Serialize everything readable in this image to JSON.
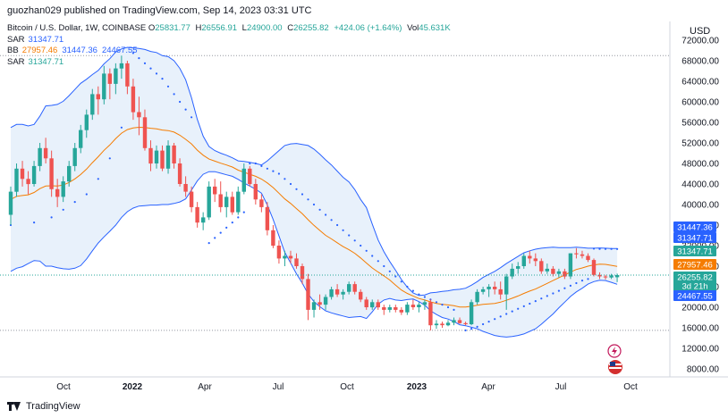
{
  "header": {
    "text": "guozhan029 published on TradingView.com, Sep 14, 2023 03:31 UTC"
  },
  "legend": {
    "symbol": "Bitcoin / U.S. Dollar, 1W, COINBASE",
    "o_label": "O",
    "o": "25831.77",
    "h_label": "H",
    "h": "26556.91",
    "l_label": "L",
    "l": "24900.00",
    "c_label": "C",
    "c": "26255.82",
    "change": "+424.06 (+1.64%)",
    "vol_label": "Vol",
    "vol": "45.631K",
    "sar1_label": "SAR",
    "sar1": "31347.71",
    "bb_label": "BB",
    "bb_mid": "27957.46",
    "bb_upper": "31447.36",
    "bb_lower": "24467.55",
    "sar2_label": "SAR",
    "sar2": "31347.71"
  },
  "footer": {
    "brand": "TradingView"
  },
  "colors": {
    "up": "#26a69a",
    "down": "#ef5350",
    "band_line": "#2962ff",
    "band_fill": "#e8f1fb",
    "basis": "#f57c00",
    "sar": "#2962ff",
    "price_tag": "#26a69a",
    "current_tag": "#2962ff"
  },
  "chart_data": {
    "type": "candlestick",
    "x_tick_labels": [
      "Oct",
      "2022",
      "Apr",
      "Jul",
      "Oct",
      "2023",
      "Apr",
      "Jul",
      "Oct"
    ],
    "y_axis_label": "USD",
    "y_tick_labels": [
      "8000.00",
      "12000.00",
      "16000.00",
      "20000.00",
      "24000.00",
      "28000.00",
      "32000.00",
      "36000.00",
      "40000.00",
      "44000.00",
      "48000.00",
      "52000.00",
      "56000.00",
      "60000.00",
      "64000.00",
      "68000.00",
      "72000.00"
    ],
    "ylim": [
      6000,
      74000
    ],
    "horizontal_markers": [
      69000,
      15500
    ],
    "price_tags": [
      {
        "label": "31447.36",
        "type": "band"
      },
      {
        "label": "31347.71",
        "type": "band"
      },
      {
        "label": "31347.71",
        "type": "sar"
      },
      {
        "label": "27957.46",
        "type": "basis"
      },
      {
        "label": "26255.82",
        "type": "current"
      },
      {
        "label": "3d 21h",
        "type": "current"
      },
      {
        "label": "24467.55",
        "type": "band"
      }
    ],
    "candles_ohlc": [
      [
        38000,
        43500,
        36000,
        42500
      ],
      [
        42500,
        48000,
        41500,
        47000
      ],
      [
        47000,
        48500,
        43500,
        45000
      ],
      [
        45000,
        46500,
        42000,
        44000
      ],
      [
        44000,
        48500,
        43500,
        47500
      ],
      [
        47500,
        52000,
        46500,
        51000
      ],
      [
        51000,
        53000,
        48000,
        49000
      ],
      [
        49000,
        50500,
        41500,
        43000
      ],
      [
        43000,
        45000,
        39500,
        41500
      ],
      [
        41500,
        45500,
        40500,
        44500
      ],
      [
        44500,
        48500,
        43500,
        47500
      ],
      [
        47500,
        52000,
        46500,
        51000
      ],
      [
        51000,
        55500,
        50000,
        54500
      ],
      [
        54500,
        58500,
        53000,
        57500
      ],
      [
        57500,
        62500,
        56500,
        61500
      ],
      [
        61500,
        63000,
        57500,
        60500
      ],
      [
        60500,
        67000,
        59500,
        65500
      ],
      [
        65500,
        66500,
        60500,
        63500
      ],
      [
        63500,
        67500,
        61500,
        66500
      ],
      [
        66500,
        69000,
        64500,
        67500
      ],
      [
        67500,
        68000,
        61500,
        63000
      ],
      [
        63000,
        64500,
        56500,
        58000
      ],
      [
        58000,
        61000,
        53500,
        57000
      ],
      [
        57000,
        58500,
        50500,
        51000
      ],
      [
        51000,
        52500,
        46500,
        48000
      ],
      [
        48000,
        51500,
        47000,
        50500
      ],
      [
        50500,
        51500,
        46500,
        47000
      ],
      [
        47000,
        52500,
        46000,
        51500
      ],
      [
        51500,
        52000,
        47000,
        48000
      ],
      [
        48000,
        49000,
        43500,
        44000
      ],
      [
        44000,
        45500,
        41500,
        42500
      ],
      [
        42500,
        43500,
        38500,
        39500
      ],
      [
        39500,
        40500,
        35500,
        36500
      ],
      [
        36500,
        38500,
        35000,
        37500
      ],
      [
        37500,
        44500,
        37000,
        43500
      ],
      [
        43500,
        45000,
        40500,
        42000
      ],
      [
        42000,
        44500,
        38500,
        39500
      ],
      [
        39500,
        42500,
        37500,
        41500
      ],
      [
        41500,
        42500,
        38000,
        38500
      ],
      [
        38500,
        43500,
        38000,
        42500
      ],
      [
        42500,
        48000,
        42000,
        47000
      ],
      [
        47000,
        47500,
        43500,
        44000
      ],
      [
        44000,
        45000,
        40000,
        41000
      ],
      [
        41000,
        42000,
        38500,
        39500
      ],
      [
        39500,
        40500,
        34000,
        35000
      ],
      [
        35000,
        36000,
        31500,
        32000
      ],
      [
        32000,
        33000,
        28500,
        29500
      ],
      [
        29500,
        31000,
        28000,
        30000
      ],
      [
        30000,
        31000,
        28500,
        29500
      ],
      [
        29500,
        30500,
        27500,
        28000
      ],
      [
        28000,
        28500,
        24500,
        25500
      ],
      [
        25500,
        26500,
        17500,
        19500
      ],
      [
        19500,
        21500,
        18000,
        21000
      ],
      [
        21000,
        22500,
        19500,
        20500
      ],
      [
        20500,
        22500,
        19500,
        22000
      ],
      [
        22000,
        24000,
        21500,
        23500
      ],
      [
        23500,
        24500,
        22000,
        22500
      ],
      [
        22500,
        23500,
        21500,
        23000
      ],
      [
        23000,
        25000,
        22500,
        24500
      ],
      [
        24500,
        25000,
        22500,
        23000
      ],
      [
        23000,
        23500,
        21000,
        21500
      ],
      [
        21500,
        22000,
        19500,
        20000
      ],
      [
        20000,
        21500,
        19500,
        21000
      ],
      [
        21000,
        21500,
        19500,
        20000
      ],
      [
        20000,
        20500,
        18500,
        19500
      ],
      [
        19500,
        20500,
        19000,
        20000
      ],
      [
        20000,
        20500,
        19000,
        19500
      ],
      [
        19500,
        20000,
        18500,
        19000
      ],
      [
        19000,
        21000,
        18500,
        20500
      ],
      [
        20500,
        21500,
        19500,
        20000
      ],
      [
        20000,
        21000,
        19000,
        20500
      ],
      [
        20500,
        21500,
        19500,
        21000
      ],
      [
        21000,
        21500,
        15500,
        16500
      ],
      [
        16500,
        17500,
        15800,
        16800
      ],
      [
        16800,
        17200,
        16000,
        16500
      ],
      [
        16500,
        17500,
        16300,
        17000
      ],
      [
        17000,
        18000,
        16500,
        17500
      ],
      [
        17500,
        18000,
        16800,
        16900
      ],
      [
        16900,
        17200,
        16500,
        16700
      ],
      [
        16700,
        21500,
        16500,
        21000
      ],
      [
        21000,
        23500,
        20500,
        23000
      ],
      [
        23000,
        24000,
        22500,
        23500
      ],
      [
        23500,
        24500,
        22000,
        24000
      ],
      [
        24000,
        25000,
        22500,
        23500
      ],
      [
        23500,
        25000,
        21500,
        22500
      ],
      [
        22500,
        26500,
        19500,
        26000
      ],
      [
        26000,
        28500,
        25500,
        27500
      ],
      [
        27500,
        28800,
        26500,
        28000
      ],
      [
        28000,
        30500,
        27500,
        30000
      ],
      [
        30000,
        31000,
        28500,
        29500
      ],
      [
        29500,
        30500,
        28000,
        29000
      ],
      [
        29000,
        29500,
        26500,
        27000
      ],
      [
        27000,
        28500,
        26500,
        27500
      ],
      [
        27500,
        28000,
        26000,
        26500
      ],
      [
        26500,
        27500,
        25800,
        27000
      ],
      [
        27000,
        27500,
        25500,
        26000
      ],
      [
        26000,
        30500,
        25500,
        30500
      ],
      [
        30500,
        31500,
        29500,
        30300
      ],
      [
        30300,
        31000,
        29500,
        30000
      ],
      [
        30000,
        30500,
        28800,
        29200
      ],
      [
        29200,
        29500,
        26000,
        26300
      ],
      [
        26300,
        26800,
        25500,
        26000
      ],
      [
        26000,
        26300,
        25400,
        25800
      ],
      [
        25800,
        26500,
        25500,
        26200
      ],
      [
        25831.77,
        26556.91,
        24900.0,
        26255.82
      ]
    ],
    "bb_basis": [
      41000,
      41600,
      41750,
      41900,
      42350,
      43100,
      43600,
      43650,
      43600,
      43800,
      44300,
      45000,
      45850,
      46900,
      48150,
      49300,
      50550,
      51600,
      52850,
      53900,
      54600,
      54900,
      55050,
      55000,
      54850,
      54750,
      54500,
      54400,
      54100,
      53500,
      52700,
      51800,
      50600,
      49600,
      48850,
      48450,
      48050,
      47700,
      47300,
      46700,
      46300,
      45900,
      45500,
      44950,
      44200,
      43300,
      42200,
      41100,
      40200,
      39200,
      38200,
      37050,
      35950,
      34950,
      34000,
      33300,
      32550,
      31800,
      31200,
      30500,
      29600,
      28600,
      27650,
      26850,
      26100,
      25300,
      24300,
      23350,
      22700,
      22200,
      21700,
      21400,
      21050,
      20750,
      20550,
      20450,
      20300,
      20050,
      20050,
      20200,
      20400,
      20550,
      20650,
      20750,
      21000,
      21350,
      21750,
      22200,
      22700,
      23150,
      23550,
      24100,
      24650,
      25200,
      25750,
      26300,
      26850,
      27350,
      27650,
      28000,
      28250,
      28400,
      28350,
      28150,
      27957.46
    ],
    "bb_upper": [
      55000,
      55600,
      55600,
      55300,
      55600,
      57200,
      59200,
      59300,
      59500,
      60100,
      61200,
      62400,
      63600,
      64400,
      65300,
      66100,
      67400,
      68400,
      69700,
      70300,
      70600,
      70500,
      70400,
      70200,
      69800,
      69600,
      69000,
      68800,
      68000,
      66500,
      64300,
      60800,
      56600,
      53300,
      51300,
      50500,
      50000,
      49600,
      49100,
      48500,
      48400,
      48200,
      48000,
      47700,
      48500,
      49500,
      50500,
      51500,
      51800,
      51900,
      51700,
      51500,
      50800,
      49800,
      48700,
      47700,
      46500,
      45300,
      44400,
      42900,
      41000,
      39400,
      36200,
      33100,
      30800,
      28900,
      27200,
      25400,
      23900,
      22800,
      22300,
      22400,
      22800,
      22900,
      23100,
      23200,
      23400,
      23500,
      23700,
      24300,
      25000,
      25800,
      26400,
      27000,
      27700,
      28500,
      29200,
      29900,
      30600,
      31000,
      31300,
      31500,
      31600,
      31700,
      31600,
      31600,
      31600,
      31700,
      31600,
      31500,
      31500,
      31550,
      31500,
      31450,
      31447.36
    ],
    "bb_lower": [
      27000,
      27600,
      27900,
      28500,
      29100,
      29000,
      28000,
      28000,
      27700,
      27500,
      27400,
      27600,
      28100,
      29400,
      31000,
      32500,
      33700,
      34800,
      36000,
      37500,
      38600,
      39300,
      39700,
      39800,
      39900,
      39900,
      40000,
      40000,
      40200,
      40500,
      41100,
      42800,
      44600,
      45900,
      46400,
      46400,
      46100,
      45800,
      45500,
      44900,
      44200,
      43600,
      43000,
      42200,
      39900,
      37100,
      33900,
      30700,
      28600,
      26500,
      24700,
      22600,
      21100,
      20100,
      19300,
      18900,
      18600,
      18300,
      18000,
      18100,
      18200,
      17800,
      19100,
      20600,
      21400,
      21700,
      21400,
      21300,
      21500,
      21600,
      21100,
      20400,
      19300,
      18600,
      18000,
      17700,
      17200,
      16600,
      16400,
      16100,
      15800,
      15300,
      14900,
      14500,
      14300,
      14200,
      14300,
      14500,
      14800,
      15300,
      15800,
      16700,
      17700,
      18700,
      19900,
      21000,
      22100,
      23000,
      23700,
      24500,
      25000,
      25250,
      25200,
      24850,
      24467.55
    ],
    "sar": [
      {
        "i": 0,
        "v": 36000
      },
      {
        "i": 4,
        "v": 36500
      },
      {
        "i": 7,
        "v": 37500
      },
      {
        "i": 9,
        "v": 39000
      },
      {
        "i": 11,
        "v": 40500
      },
      {
        "i": 13,
        "v": 42000
      },
      {
        "i": 15,
        "v": 45000
      },
      {
        "i": 17,
        "v": 49000
      },
      {
        "i": 19,
        "v": 55000
      },
      {
        "i": 21,
        "v": 69500
      },
      {
        "i": 22,
        "v": 68500
      },
      {
        "i": 23,
        "v": 67500
      },
      {
        "i": 24,
        "v": 66500
      },
      {
        "i": 25,
        "v": 65500
      },
      {
        "i": 26,
        "v": 64500
      },
      {
        "i": 27,
        "v": 63000
      },
      {
        "i": 28,
        "v": 61500
      },
      {
        "i": 29,
        "v": 60000
      },
      {
        "i": 30,
        "v": 58500
      },
      {
        "i": 31,
        "v": 57000
      },
      {
        "i": 34,
        "v": 32500
      },
      {
        "i": 35,
        "v": 33500
      },
      {
        "i": 36,
        "v": 34500
      },
      {
        "i": 37,
        "v": 35500
      },
      {
        "i": 38,
        "v": 36500
      },
      {
        "i": 39,
        "v": 37500
      },
      {
        "i": 40,
        "v": 38500
      },
      {
        "i": 41,
        "v": 48000
      },
      {
        "i": 42,
        "v": 48000
      },
      {
        "i": 43,
        "v": 47500
      },
      {
        "i": 44,
        "v": 47000
      },
      {
        "i": 45,
        "v": 46500
      },
      {
        "i": 46,
        "v": 46000
      },
      {
        "i": 47,
        "v": 45000
      },
      {
        "i": 48,
        "v": 44000
      },
      {
        "i": 49,
        "v": 43000
      },
      {
        "i": 50,
        "v": 42000
      },
      {
        "i": 51,
        "v": 41000
      },
      {
        "i": 52,
        "v": 40000
      },
      {
        "i": 53,
        "v": 39000
      },
      {
        "i": 54,
        "v": 38000
      },
      {
        "i": 55,
        "v": 37000
      },
      {
        "i": 56,
        "v": 36000
      },
      {
        "i": 57,
        "v": 35000
      },
      {
        "i": 58,
        "v": 34000
      },
      {
        "i": 59,
        "v": 33000
      },
      {
        "i": 60,
        "v": 32000
      },
      {
        "i": 61,
        "v": 31000
      },
      {
        "i": 62,
        "v": 30000
      },
      {
        "i": 63,
        "v": 29000
      },
      {
        "i": 64,
        "v": 28000
      },
      {
        "i": 65,
        "v": 27000
      },
      {
        "i": 66,
        "v": 26000
      },
      {
        "i": 67,
        "v": 25000
      },
      {
        "i": 68,
        "v": 24000
      },
      {
        "i": 69,
        "v": 23200
      },
      {
        "i": 70,
        "v": 22500
      },
      {
        "i": 71,
        "v": 22000
      },
      {
        "i": 72,
        "v": 21500
      },
      {
        "i": 73,
        "v": 21000
      },
      {
        "i": 74,
        "v": 20500
      },
      {
        "i": 75,
        "v": 20000
      },
      {
        "i": 76,
        "v": 19500
      },
      {
        "i": 78,
        "v": 15500
      },
      {
        "i": 79,
        "v": 15800
      },
      {
        "i": 80,
        "v": 16200
      },
      {
        "i": 81,
        "v": 16700
      },
      {
        "i": 82,
        "v": 17200
      },
      {
        "i": 83,
        "v": 17700
      },
      {
        "i": 84,
        "v": 18200
      },
      {
        "i": 85,
        "v": 18700
      },
      {
        "i": 86,
        "v": 19200
      },
      {
        "i": 87,
        "v": 19700
      },
      {
        "i": 88,
        "v": 20200
      },
      {
        "i": 89,
        "v": 20700
      },
      {
        "i": 90,
        "v": 21200
      },
      {
        "i": 91,
        "v": 21700
      },
      {
        "i": 92,
        "v": 22200
      },
      {
        "i": 93,
        "v": 22700
      },
      {
        "i": 94,
        "v": 23200
      },
      {
        "i": 95,
        "v": 23700
      },
      {
        "i": 96,
        "v": 24200
      },
      {
        "i": 97,
        "v": 24700
      },
      {
        "i": 98,
        "v": 25200
      },
      {
        "i": 99,
        "v": 25500
      },
      {
        "i": 100,
        "v": 31400
      },
      {
        "i": 101,
        "v": 31350
      },
      {
        "i": 102,
        "v": 31350
      },
      {
        "i": 103,
        "v": 31350
      },
      {
        "i": 104,
        "v": 31347.71
      }
    ]
  }
}
